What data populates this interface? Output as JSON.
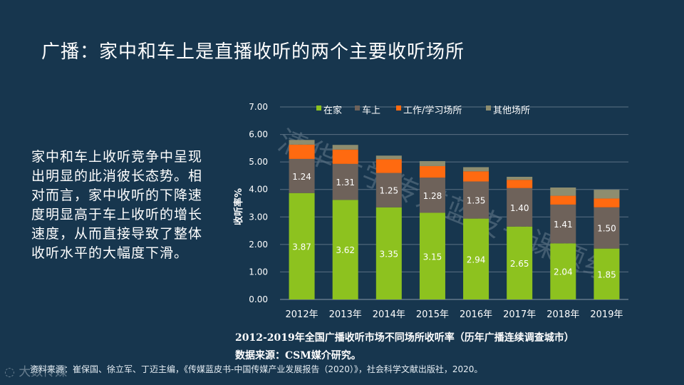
{
  "title": "广播：家中和车上是直播收听的两个主要收听场所",
  "body_text": "家中和车上收听竞争中呈现出明显的此消彼长态势。相对而言，家中收听的下降速度明显高于车上收听的增长速度，从而直接导致了整体收听水平的大幅度下滑。",
  "watermark": "清华大学传媒蓝皮书课题组",
  "caption": {
    "line1": "2012-2019年全国广播收听市场不同场所收听率（历年广播连续调查城市）",
    "line2": "数据来源：CSM媒介研究。"
  },
  "footnote": "资料来源：崔保国、徐立军、丁迈主编，《传媒蓝皮书-中国传媒产业发展报告（2020）》，社会科学文献出版社，2020。",
  "logo_text": "大数传媒",
  "colors": {
    "background": "#17364e",
    "home": "#8dc21f",
    "car": "#6e625a",
    "work": "#ff6a10",
    "other": "#8e8d6f"
  },
  "chart_data": {
    "type": "bar",
    "stacked": true,
    "categories": [
      "2012年",
      "2013年",
      "2014年",
      "2015年",
      "2016年",
      "2017年",
      "2018年",
      "2019年"
    ],
    "series": [
      {
        "name": "在家",
        "values": [
          3.87,
          3.62,
          3.35,
          3.15,
          2.94,
          2.65,
          2.04,
          1.85
        ],
        "color_key": "home",
        "labeled": true
      },
      {
        "name": "车上",
        "values": [
          1.24,
          1.31,
          1.25,
          1.28,
          1.35,
          1.4,
          1.41,
          1.5
        ],
        "color_key": "car",
        "labeled": true
      },
      {
        "name": "工作/学习场所",
        "values": [
          0.52,
          0.52,
          0.5,
          0.42,
          0.37,
          0.3,
          0.32,
          0.32
        ],
        "color_key": "work",
        "labeled": false
      },
      {
        "name": "其他场所",
        "values": [
          0.17,
          0.17,
          0.13,
          0.18,
          0.15,
          0.11,
          0.3,
          0.32
        ],
        "color_key": "other",
        "labeled": false
      }
    ],
    "ylabel": "收听率%",
    "ylim": [
      0,
      7
    ],
    "yticks": [
      "0.00",
      "1.00",
      "2.00",
      "3.00",
      "4.00",
      "5.00",
      "6.00",
      "7.00"
    ],
    "grid": true,
    "legend": "top"
  }
}
